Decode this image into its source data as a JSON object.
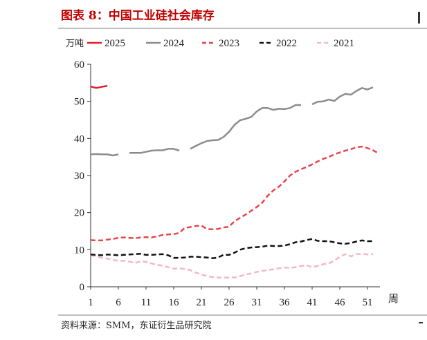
{
  "chart_data": {
    "type": "line",
    "title": "图表 8：中国工业硅社会库存",
    "ylabel": "万吨",
    "xlabel": "周",
    "ylim": [
      0,
      60
    ],
    "yticks": [
      "0",
      "10",
      "20",
      "30",
      "40",
      "50",
      "60"
    ],
    "xticks": [
      "1",
      "6",
      "11",
      "16",
      "21",
      "26",
      "31",
      "36",
      "41",
      "46",
      "51"
    ],
    "x_start": 1,
    "grid": false,
    "legend_position": "top",
    "series": [
      {
        "name": "2025",
        "color": "#e0202a",
        "line_style": "solid",
        "values": [
          54.0,
          53.6,
          53.9,
          54.2
        ]
      },
      {
        "name": "2024",
        "color": "#8c8c8c",
        "line_style": "solid",
        "values": [
          35.7,
          35.8,
          35.7,
          35.7,
          35.4,
          35.7,
          null,
          36.1,
          36.1,
          36.1,
          36.4,
          36.7,
          36.8,
          36.8,
          37.2,
          37.2,
          36.7,
          null,
          37.2,
          38.0,
          38.7,
          39.3,
          39.5,
          39.6,
          40.4,
          41.8,
          43.7,
          44.9,
          45.3,
          45.8,
          47.3,
          48.2,
          48.2,
          47.7,
          48.0,
          47.9,
          48.2,
          49.0,
          49.0,
          null,
          49.2,
          49.9,
          50.0,
          50.5,
          50.1,
          51.3,
          52.0,
          51.8,
          52.8,
          53.6,
          53.2,
          53.8
        ]
      },
      {
        "name": "2023",
        "color": "#e8434b",
        "line_style": "dashed",
        "values": [
          12.6,
          12.5,
          12.5,
          12.7,
          12.9,
          13.2,
          13.3,
          13.2,
          13.1,
          13.3,
          13.4,
          13.3,
          13.6,
          14.0,
          14.1,
          14.2,
          14.5,
          15.9,
          16.1,
          16.4,
          16.5,
          15.6,
          15.5,
          15.6,
          16.0,
          16.2,
          17.7,
          18.6,
          19.5,
          20.5,
          21.5,
          22.7,
          24.6,
          26.0,
          27.0,
          28.4,
          30.0,
          31.0,
          31.7,
          32.3,
          33.0,
          33.8,
          34.5,
          35.0,
          35.7,
          36.2,
          36.7,
          37.1,
          37.6,
          37.8,
          37.4,
          36.8,
          36.0
        ]
      },
      {
        "name": "2022",
        "color": "#111111",
        "line_style": "dashed",
        "values": [
          8.7,
          8.6,
          8.5,
          8.7,
          8.6,
          8.5,
          8.6,
          8.7,
          8.8,
          8.9,
          8.6,
          8.6,
          8.7,
          8.8,
          8.5,
          7.8,
          7.8,
          7.9,
          8.1,
          8.1,
          8.0,
          7.9,
          7.7,
          7.9,
          8.6,
          8.6,
          9.2,
          10.0,
          10.4,
          10.6,
          10.7,
          10.8,
          11.1,
          11.0,
          11.0,
          11.1,
          11.5,
          12.0,
          12.2,
          12.6,
          12.9,
          12.4,
          12.3,
          12.3,
          12.0,
          11.7,
          11.6,
          11.8,
          12.2,
          12.5,
          12.3,
          12.3
        ]
      },
      {
        "name": "2021",
        "color": "#f5b8bf",
        "line_style": "dashed",
        "values": [
          8.4,
          8.3,
          7.8,
          7.6,
          7.3,
          7.0,
          7.0,
          6.8,
          6.4,
          6.9,
          6.7,
          6.3,
          5.9,
          5.7,
          5.3,
          4.9,
          5.0,
          4.8,
          4.5,
          3.8,
          3.3,
          2.9,
          2.6,
          2.5,
          2.4,
          2.5,
          2.5,
          2.9,
          3.3,
          3.6,
          4.0,
          4.3,
          4.5,
          4.7,
          5.0,
          5.2,
          5.1,
          5.3,
          5.6,
          5.8,
          5.3,
          5.6,
          6.1,
          6.3,
          7.0,
          8.1,
          8.8,
          8.2,
          8.8,
          8.9,
          8.7,
          8.8
        ]
      }
    ]
  },
  "source": "资料来源：SMM，东证衍生品研究院"
}
